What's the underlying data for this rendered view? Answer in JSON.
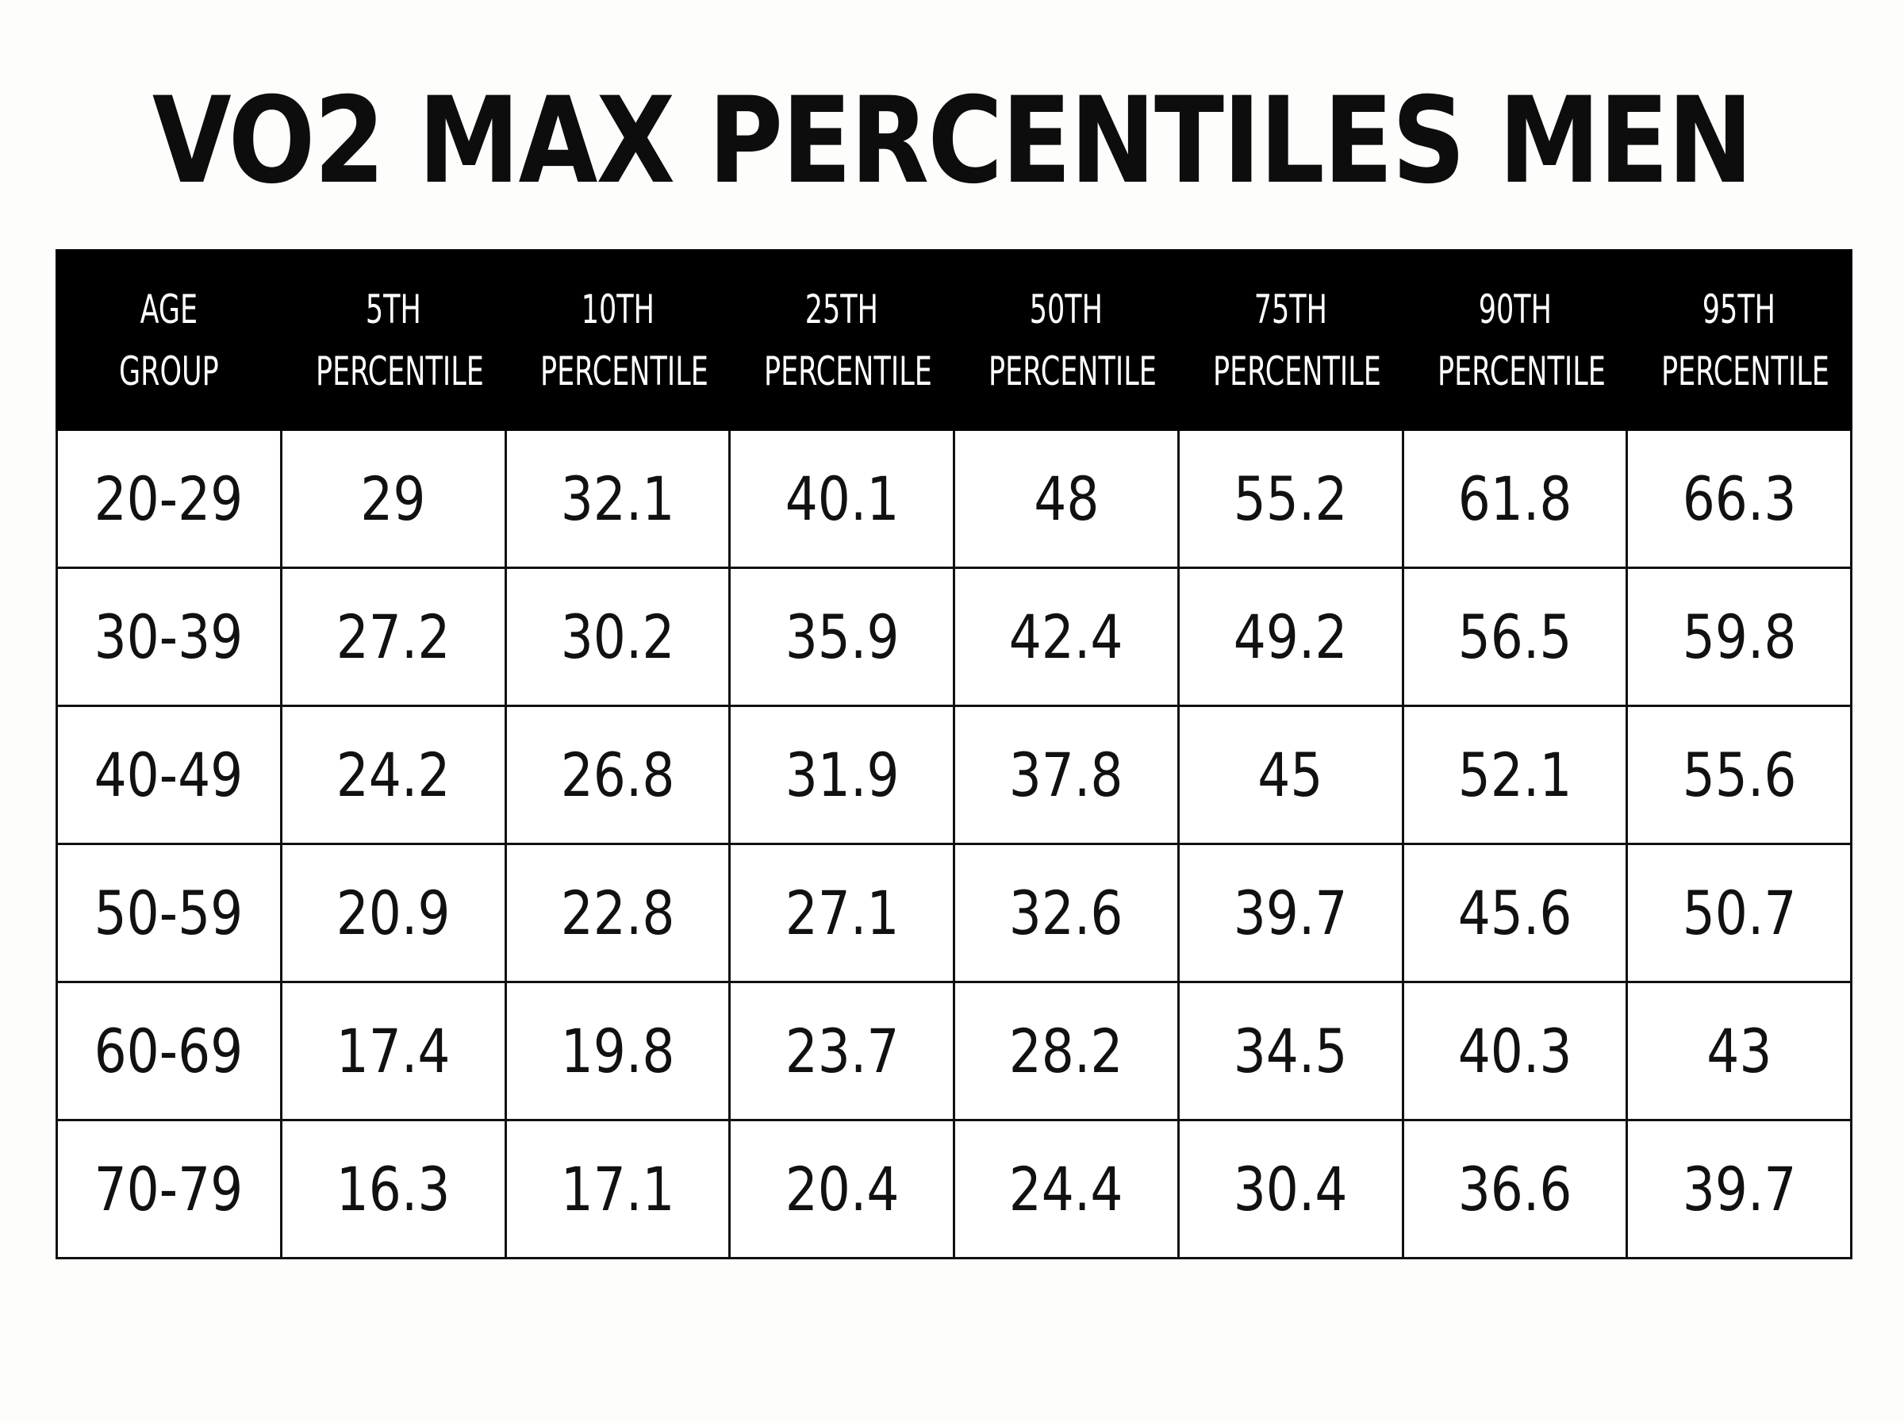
{
  "title": "VO2 MAX PERCENTILES MEN",
  "columns": [
    [
      "AGE",
      "GROUP"
    ],
    [
      "5TH",
      "PERCENTILE"
    ],
    [
      "10TH",
      "PERCENTILE"
    ],
    [
      "25TH",
      "PERCENTILE"
    ],
    [
      "50TH",
      "PERCENTILE"
    ],
    [
      "75TH",
      "PERCENTILE"
    ],
    [
      "90TH",
      "PERCENTILE"
    ],
    [
      "95TH",
      "PERCENTILE"
    ]
  ],
  "rows": [
    [
      "20-29",
      "29",
      "32.1",
      "40.1",
      "48",
      "55.2",
      "61.8",
      "66.3"
    ],
    [
      "30-39",
      "27.2",
      "30.2",
      "35.9",
      "42.4",
      "49.2",
      "56.5",
      "59.8"
    ],
    [
      "40-49",
      "24.2",
      "26.8",
      "31.9",
      "37.8",
      "45",
      "52.1",
      "55.6"
    ],
    [
      "50-59",
      "20.9",
      "22.8",
      "27.1",
      "32.6",
      "39.7",
      "45.6",
      "50.7"
    ],
    [
      "60-69",
      "17.4",
      "19.8",
      "23.7",
      "28.2",
      "34.5",
      "40.3",
      "43"
    ],
    [
      "70-79",
      "16.3",
      "17.1",
      "20.4",
      "24.4",
      "30.4",
      "36.6",
      "39.7"
    ]
  ],
  "chart_data": {
    "type": "table",
    "title": "VO2 MAX PERCENTILES MEN",
    "row_header": "AGE GROUP",
    "categories": [
      "20-29",
      "30-39",
      "40-49",
      "50-59",
      "60-69",
      "70-79"
    ],
    "series": [
      {
        "name": "5TH PERCENTILE",
        "values": [
          29,
          27.2,
          24.2,
          20.9,
          17.4,
          16.3
        ]
      },
      {
        "name": "10TH PERCENTILE",
        "values": [
          32.1,
          30.2,
          26.8,
          22.8,
          19.8,
          17.1
        ]
      },
      {
        "name": "25TH PERCENTILE",
        "values": [
          40.1,
          35.9,
          31.9,
          27.1,
          23.7,
          20.4
        ]
      },
      {
        "name": "50TH PERCENTILE",
        "values": [
          48,
          42.4,
          37.8,
          32.6,
          28.2,
          24.4
        ]
      },
      {
        "name": "75TH PERCENTILE",
        "values": [
          55.2,
          49.2,
          45,
          39.7,
          34.5,
          30.4
        ]
      },
      {
        "name": "90TH PERCENTILE",
        "values": [
          61.8,
          56.5,
          52.1,
          45.6,
          40.3,
          36.6
        ]
      },
      {
        "name": "95TH PERCENTILE",
        "values": [
          66.3,
          59.8,
          55.6,
          50.7,
          43,
          39.7
        ]
      }
    ]
  }
}
